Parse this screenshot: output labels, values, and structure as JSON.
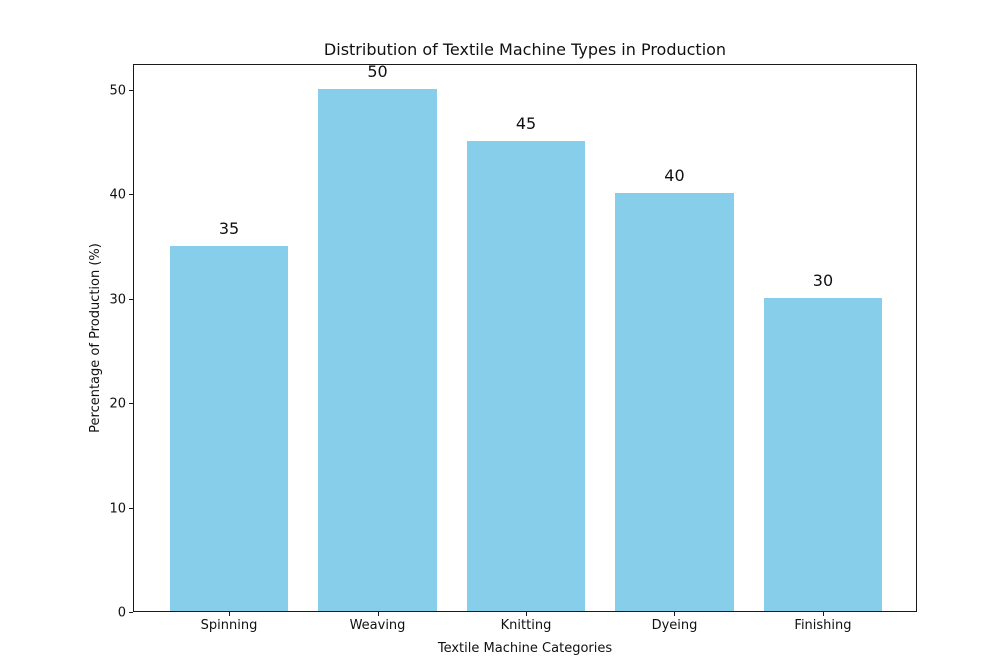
{
  "chart_data": {
    "type": "bar",
    "title": "Distribution of Textile Machine Types in Production",
    "xlabel": "Textile Machine Categories",
    "ylabel": "Percentage of Production (%)",
    "categories": [
      "Spinning",
      "Weaving",
      "Knitting",
      "Dyeing",
      "Finishing"
    ],
    "values": [
      35,
      50,
      45,
      40,
      30
    ],
    "bar_value_labels": [
      "35",
      "50",
      "45",
      "40",
      "30"
    ],
    "yticks": [
      0,
      10,
      20,
      30,
      40,
      50
    ],
    "ylim": [
      0,
      52.5
    ],
    "bar_color": "#87CEEB",
    "axis_color": "#1a1a1a",
    "text_color": "#111111",
    "background_color": "#ffffff",
    "grid": "off",
    "legend": "none"
  }
}
